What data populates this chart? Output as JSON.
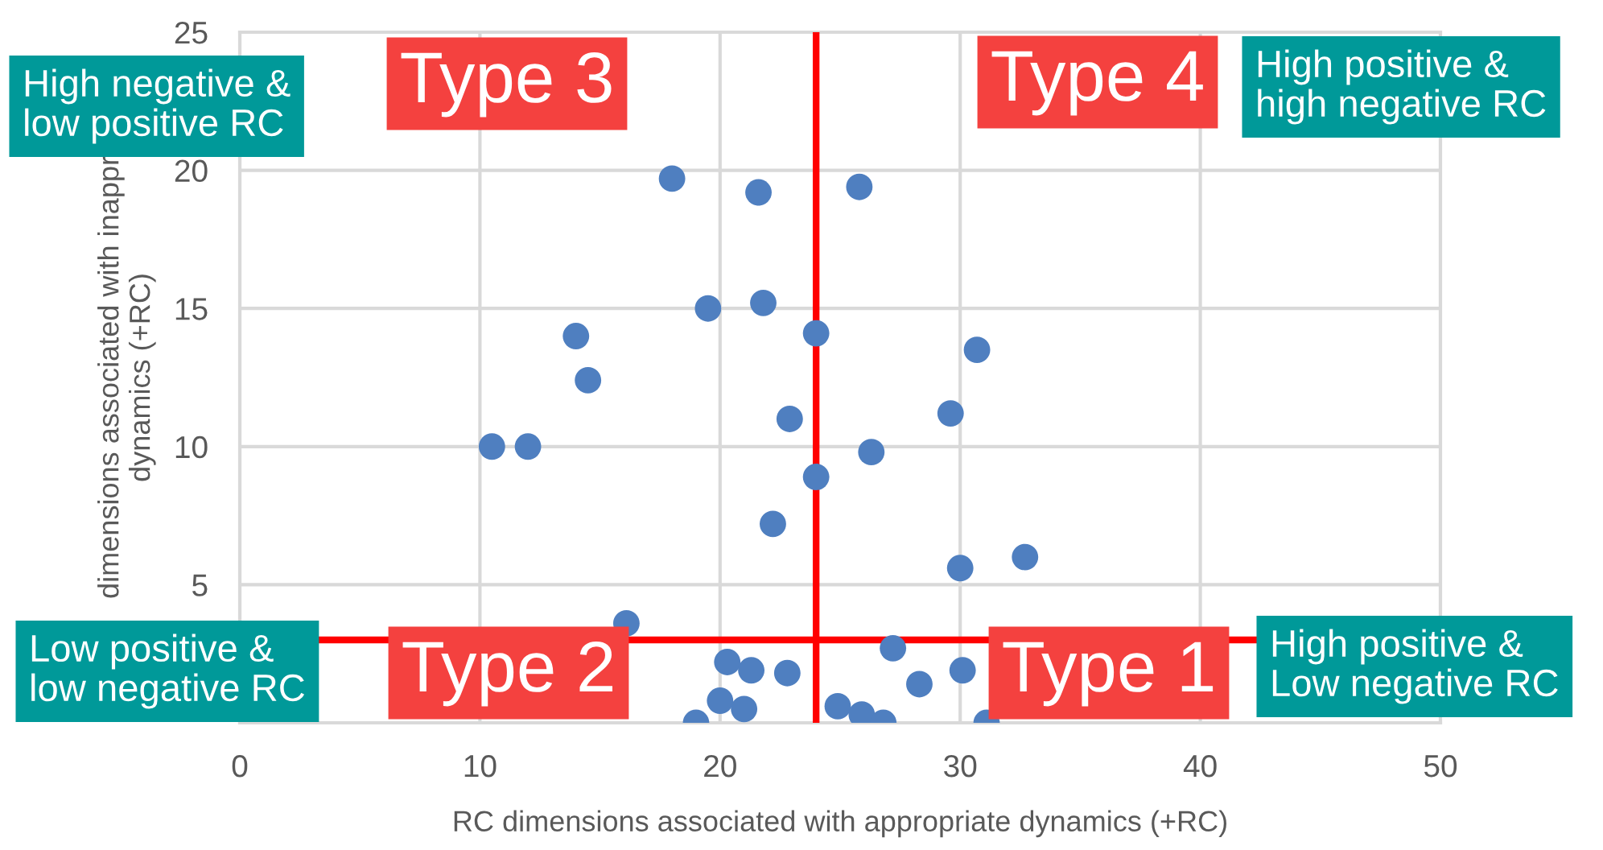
{
  "chart_data": {
    "type": "scatter",
    "xlabel": "RC dimensions associated with appropriate dynamics (+RC)",
    "ylabel": "dimensions associated with inappr\ndynamics (+RC)",
    "series": [
      {
        "color": "#4f7fc0",
        "x": [
          18.0,
          21.6,
          25.8,
          19.5,
          21.8,
          24.0,
          30.7,
          14.0,
          14.5,
          22.9,
          29.6,
          26.3,
          24.0,
          22.2,
          10.5,
          12.0,
          30.0,
          32.7,
          16.1,
          20.3,
          21.3,
          22.8,
          20.0,
          21.0,
          19.0,
          27.2,
          28.3,
          30.1,
          24.9,
          25.9,
          26.8,
          31.1
        ],
        "values": [
          19.7,
          19.2,
          19.4,
          15.0,
          15.2,
          14.1,
          13.5,
          14.0,
          12.4,
          11.0,
          11.2,
          9.8,
          8.9,
          7.2,
          10.0,
          10.0,
          5.6,
          6.0,
          3.6,
          2.2,
          1.9,
          1.8,
          0.8,
          0.5,
          0.0,
          2.7,
          1.4,
          1.9,
          0.6,
          0.3,
          0.0,
          0.0
        ]
      }
    ],
    "xlim": [
      0,
      50
    ],
    "xticks": [
      0,
      10,
      20,
      30,
      40,
      50
    ],
    "ylim": [
      0,
      25
    ],
    "yticks": [
      {
        "value": 0,
        "label": null
      },
      5,
      10,
      15,
      20,
      25
    ],
    "grid": true,
    "marker": "circle",
    "ref_lines": [
      {
        "axis": "x",
        "value": 24,
        "color": "#ff0000"
      },
      {
        "axis": "y",
        "value": 3,
        "color": "#ff0000"
      }
    ],
    "annotations": [
      "High negative &\nlow positive RC",
      "Type 3",
      "Type 4",
      "High positive &\nhigh negative RC",
      "Low positive &\nlow negative RC",
      "Type 2",
      "Type 1",
      "High positive &\nLow negative RC"
    ]
  }
}
